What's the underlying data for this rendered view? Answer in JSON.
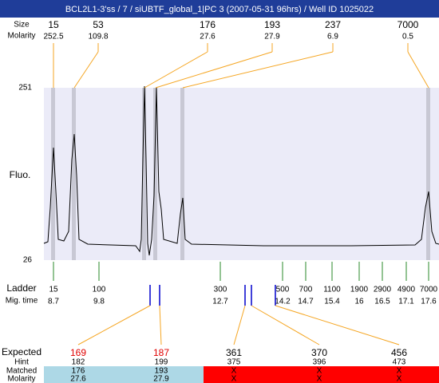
{
  "header": {
    "title": "BCL2L1-3'ss / 7 / siUBTF_global_1|PC 3 (2007-05-31 96hrs) / Well ID 1025022"
  },
  "peaks": {
    "size_label": "Size",
    "molarity_label": "Molarity",
    "sizes": [
      "15",
      "53",
      "176",
      "193",
      "237",
      "7000"
    ],
    "molarities": [
      "252.5",
      "109.8",
      "27.6",
      "27.9",
      "6.9",
      "0.5"
    ]
  },
  "plot": {
    "y_top": "251",
    "y_bottom": "26",
    "y_label": "Fluo."
  },
  "ladder": {
    "label": "Ladder",
    "time_label": "Mig. time",
    "sizes": [
      "15",
      "100",
      "300",
      "500",
      "700",
      "1100",
      "1900",
      "2900",
      "4900",
      "7000"
    ],
    "times": [
      "8.7",
      "9.8",
      "12.7",
      "14.2",
      "14.7",
      "15.4",
      "16",
      "16.5",
      "17.1",
      "17.6"
    ]
  },
  "table": {
    "expected_label": "Expected",
    "hint_label": "Hint",
    "matched_label": "Matched",
    "molarity_label": "Molarity",
    "expected": [
      "169",
      "187",
      "361",
      "370",
      "456"
    ],
    "hint": [
      "182",
      "199",
      "375",
      "396",
      "473"
    ],
    "matched": [
      "176",
      "193",
      "X",
      "X",
      "X"
    ],
    "molarity": [
      "27.6",
      "27.9",
      "X",
      "X",
      "X"
    ]
  }
}
